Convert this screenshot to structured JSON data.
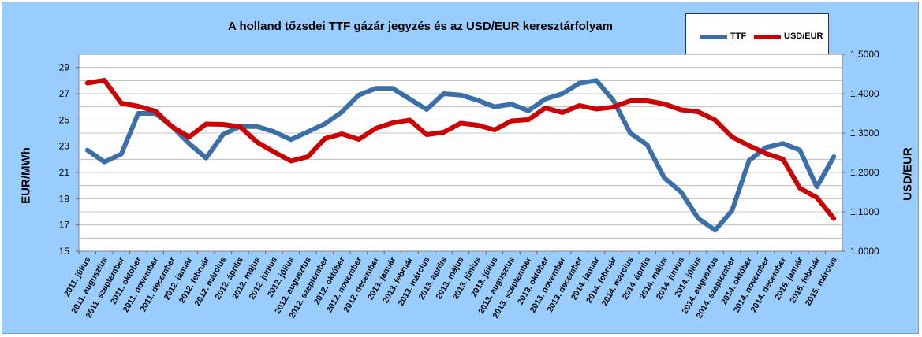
{
  "chart_data": {
    "type": "line",
    "title": "A holland tőzsdei TTF gázár jegyzés és az USD/EUR keresztárfolyam",
    "ylabel_left": "EUR/MWh",
    "ylabel_right": "USD/EUR",
    "ylim_left": [
      15,
      30
    ],
    "ylim_right": [
      1.0,
      1.5
    ],
    "yticks_left": [
      "15",
      "17",
      "19",
      "21",
      "23",
      "25",
      "27",
      "29"
    ],
    "yticks_right": [
      "1,0000",
      "1,1000",
      "1,2000",
      "1,3000",
      "1,4000",
      "1,5000"
    ],
    "grid": true,
    "legend_position": "top-right",
    "categories": [
      "2011. július",
      "2011. augusztus",
      "2011. szeptember",
      "2011. október",
      "2011. november",
      "2011. december",
      "2012. január",
      "2012. február",
      "2012. március",
      "2012. április",
      "2012. május",
      "2012. június",
      "2012. július",
      "2012. augusztus",
      "2012. szeptember",
      "2012. október",
      "2012. november",
      "2012. december",
      "2013. január",
      "2013. február",
      "2013. március",
      "2013. április",
      "2013. május",
      "2013. június",
      "2013. július",
      "2013. augusztus",
      "2013. szeptember",
      "2013. október",
      "2013. november",
      "2013. december",
      "2014. január",
      "2014. február",
      "2014. március",
      "2014. április",
      "2014. május",
      "2014. június",
      "2014. július",
      "2014. augusztus",
      "2014. szeptember",
      "2014. október",
      "2014. november",
      "2014. december",
      "2015. január",
      "2015. február",
      "2015. március"
    ],
    "series": [
      {
        "name": "TTF",
        "axis": "left",
        "color": "#3a6fa8",
        "values": [
          22.7,
          21.8,
          22.4,
          25.5,
          25.5,
          24.5,
          23.2,
          22.1,
          23.9,
          24.5,
          24.5,
          24.1,
          23.5,
          24.1,
          24.7,
          25.6,
          26.9,
          27.4,
          27.4,
          26.6,
          25.8,
          27.0,
          26.9,
          26.5,
          26.0,
          26.2,
          25.7,
          26.6,
          27.0,
          27.8,
          28.0,
          26.5,
          24.0,
          23.1,
          20.6,
          19.5,
          17.5,
          16.6,
          18.1,
          21.9,
          22.9,
          23.2,
          22.7,
          19.9,
          22.2
        ]
      },
      {
        "name": "USD/EUR",
        "axis": "right",
        "color": "#cc0000",
        "values": [
          1.427,
          1.434,
          1.376,
          1.368,
          1.356,
          1.316,
          1.29,
          1.323,
          1.322,
          1.316,
          1.277,
          1.252,
          1.229,
          1.24,
          1.286,
          1.298,
          1.284,
          1.312,
          1.326,
          1.333,
          1.296,
          1.302,
          1.325,
          1.32,
          1.308,
          1.331,
          1.334,
          1.364,
          1.352,
          1.37,
          1.361,
          1.366,
          1.382,
          1.382,
          1.374,
          1.359,
          1.354,
          1.333,
          1.29,
          1.268,
          1.248,
          1.234,
          1.16,
          1.136,
          1.083
        ]
      }
    ]
  }
}
